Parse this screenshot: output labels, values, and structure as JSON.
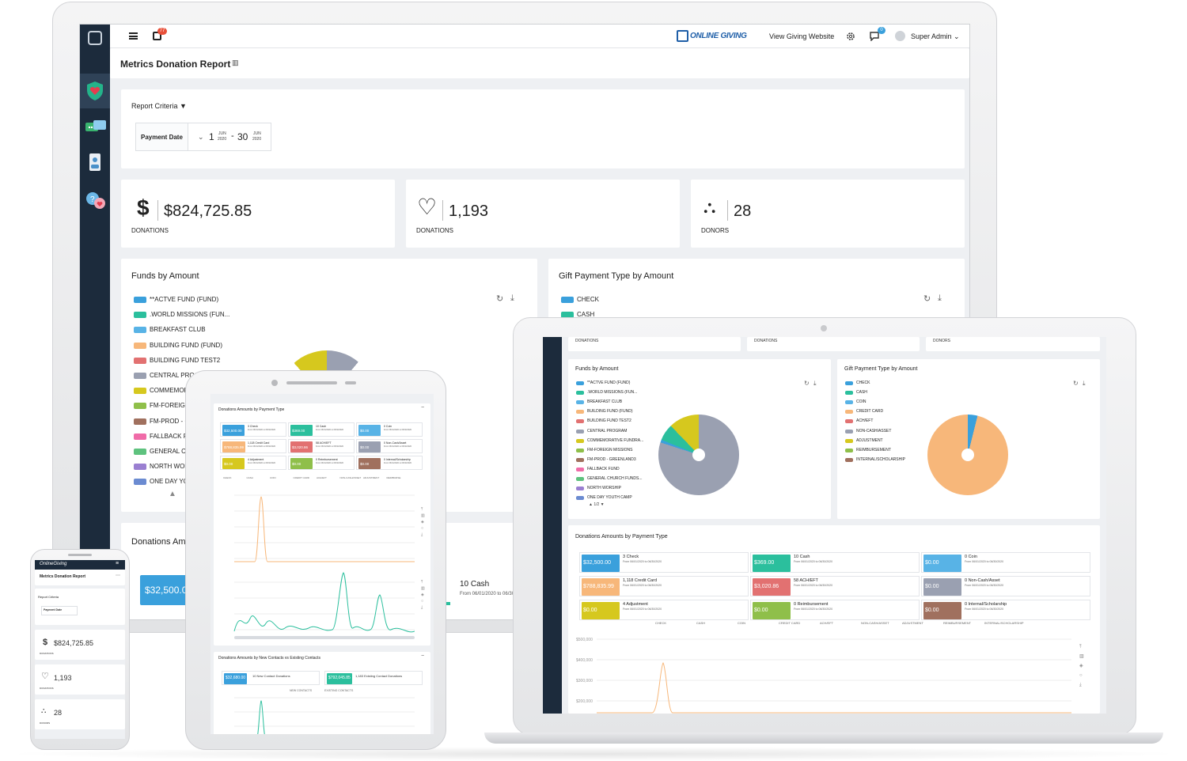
{
  "app": {
    "brand": "ONLINE GIVING",
    "view_site": "View Giving Website",
    "notif_count": "77",
    "msg_count": "0",
    "user": "Super Admin"
  },
  "page": {
    "title": "Metrics Donation Report",
    "criteria_label": "Report Criteria",
    "payment_date_label": "Payment Date",
    "date_from_day": "1",
    "date_from_mon": "JUN",
    "date_from_year": "2020",
    "date_sep": "-",
    "date_to_day": "30",
    "date_to_mon": "JUN",
    "date_to_year": "2020"
  },
  "stats": [
    {
      "icon": "dollar-icon",
      "glyph": "$",
      "value": "$824,725.85",
      "label": "DONATIONS"
    },
    {
      "icon": "heart-icon",
      "glyph": "♡",
      "value": "1,193",
      "label": "DONATIONS"
    },
    {
      "icon": "donors-icon",
      "glyph": "⛬",
      "value": "28",
      "label": "DONORS"
    }
  ],
  "funds": {
    "title": "Funds by Amount",
    "legend": [
      {
        "label": "**ACTVE FUND (FUND)",
        "color": "#3aa0dc"
      },
      {
        "label": ".WORLD MISSIONS (FUN...",
        "color": "#2bbf9d"
      },
      {
        "label": "BREAKFAST CLUB",
        "color": "#58b3e6"
      },
      {
        "label": "BUILDING FUND (FUND)",
        "color": "#f7b77a"
      },
      {
        "label": "BUILDING FUND TEST2",
        "color": "#e27171"
      },
      {
        "label": "CENTRAL PROGRAM",
        "color": "#9aa0b1"
      },
      {
        "label": "COMMEMORATIVE FUNDRA...",
        "color": "#d6c81e"
      },
      {
        "label": "FM-FOREIGN MISSIONS",
        "color": "#8fbf4a"
      },
      {
        "label": "FM-PROD - GREENLAND3",
        "color": "#a0705e"
      },
      {
        "label": "FALLBACK FUND",
        "color": "#f06ba8"
      },
      {
        "label": "GENERAL CHURCH FUNDS...",
        "color": "#5ec27e"
      },
      {
        "label": "NORTH WORSHIP",
        "color": "#9a7fd1"
      },
      {
        "label": "ONE DAY YOUTH CAMP",
        "color": "#6b8bd1"
      }
    ],
    "monitor_legend": [
      "**ACTVE FUND (FUND)",
      ".WORLD MISSIONS (FUN...",
      "BREAKFAST CLUB",
      "BUILDING FUND (FUND)",
      "BUILDING FUND TEST2",
      "CENTRAL PROG",
      "COMMEMOR",
      "FM-FOREIGN",
      "FM-PROD - G",
      "FALLBACK F",
      "GENERAL CI",
      "NORTH WOR",
      "ONE DAY YO"
    ],
    "pager": "1/2"
  },
  "payment_types": {
    "title": "Gift Payment Type by Amount",
    "legend": [
      {
        "label": "CHECK",
        "color": "#3aa0dc"
      },
      {
        "label": "CASH",
        "color": "#2bbf9d"
      },
      {
        "label": "COIN",
        "color": "#58b3e6"
      },
      {
        "label": "CREDIT CARD",
        "color": "#f7b77a"
      },
      {
        "label": "ACH/EFT",
        "color": "#e27171"
      },
      {
        "label": "NON-CASH/ASSET",
        "color": "#9aa0b1"
      },
      {
        "label": "ADJUSTMENT",
        "color": "#d6c81e"
      },
      {
        "label": "REIMBURSEMENT",
        "color": "#8fbf4a"
      },
      {
        "label": "INTERNAL/SCHOLARSHIP",
        "color": "#a0705e"
      }
    ]
  },
  "donations_by_type": {
    "title": "Donations Amounts by Payment Type",
    "monitor_title": "Donations Am",
    "range": "From 06/01/2020 to 06/30/2020",
    "items": [
      {
        "amount": "$32,500.00",
        "desc": "3 Check",
        "color": "#3aa0dc"
      },
      {
        "amount": "$369.00",
        "desc": "10 Cash",
        "color": "#2bbf9d"
      },
      {
        "amount": "$0.00",
        "desc": "0 Coin",
        "color": "#58b3e6"
      },
      {
        "amount": "$788,835.99",
        "desc": "1,118 Credit Card",
        "color": "#f7b77a"
      },
      {
        "amount": "$3,020.86",
        "desc": "58 ACH/EFT",
        "color": "#e27171"
      },
      {
        "amount": "$0.00",
        "desc": "0 Non-Cash/Asset",
        "color": "#9aa0b1"
      },
      {
        "amount": "$0.00",
        "desc": "4 Adjustment",
        "color": "#d6c81e"
      },
      {
        "amount": "$0.00",
        "desc": "0 Reimbursement",
        "color": "#8fbf4a"
      },
      {
        "amount": "$0.00",
        "desc": "0 Internal/Scholarship",
        "color": "#a0705e"
      }
    ],
    "monitor_amount": "$32,500.0",
    "monitor_cash": "10 Cash",
    "monitor_cash_range": "From 06/01/2020 to 06/30",
    "series_labels": [
      "CHECK",
      "CASH",
      "COIN",
      "CREDIT CARD",
      "ACH/EFT",
      "NON-CASH/ASSET",
      "ADJUSTMENT",
      "REIMBURSE"
    ],
    "y_ticks": [
      "$500,000",
      "$400,000",
      "$300,000",
      "$200,000"
    ]
  },
  "contacts": {
    "title": "Donations Amounts by New Contacts vs Existing Contacts",
    "items": [
      {
        "amount": "$32,680.00",
        "desc": "10 New Contact Donations",
        "color": "#3aa0dc"
      },
      {
        "amount": "$792,045.85",
        "desc": "1,183 Existing Contact Donations",
        "color": "#2bbf9d"
      }
    ],
    "series_labels": [
      "NEW CONTACTS",
      "EXISTING CONTACTS"
    ]
  },
  "phone": {
    "brand": "OnlineGiving",
    "title": "Metrics Donation Report",
    "criteria": "Report Criteria",
    "payment_date": "Payment Date",
    "stats": [
      "$824,725.85",
      "1,193",
      "28"
    ],
    "labels": [
      "DONATIONS",
      "DONATIONS",
      "DONORS"
    ]
  }
}
